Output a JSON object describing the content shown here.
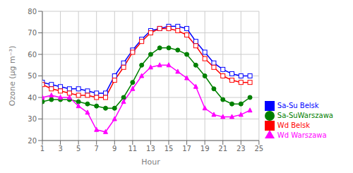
{
  "chart_data": {
    "type": "line",
    "x": [
      1,
      2,
      3,
      4,
      5,
      6,
      7,
      8,
      9,
      10,
      11,
      12,
      13,
      14,
      15,
      16,
      17,
      18,
      19,
      20,
      21,
      22,
      23,
      24
    ],
    "series": [
      {
        "name": "Sa-Su Belsk",
        "color": "#0000ff",
        "marker": "square",
        "values": [
          47,
          46,
          45,
          44,
          44,
          43,
          42,
          42,
          50,
          56,
          62,
          67,
          71,
          72,
          73,
          73,
          72,
          66,
          61,
          56,
          53,
          51,
          50,
          50
        ]
      },
      {
        "name": "Wd Belsk",
        "color": "#ff0000",
        "marker": "square",
        "values": [
          46,
          44,
          43,
          42,
          41,
          41,
          40,
          40,
          48,
          54,
          61,
          66,
          70,
          72,
          72,
          71,
          69,
          64,
          58,
          54,
          50,
          48,
          47,
          47
        ]
      },
      {
        "name": "Sa-SuWarszawa",
        "color": "#008000",
        "marker": "circle",
        "values": [
          38,
          39,
          39,
          39,
          38,
          37,
          36,
          35,
          35,
          40,
          47,
          55,
          60,
          63,
          63,
          62,
          60,
          55,
          50,
          44,
          39,
          37,
          37,
          40
        ]
      },
      {
        "name": "Wd Warszawa",
        "color": "#ff00ff",
        "marker": "triangle",
        "values": [
          40,
          41,
          40,
          40,
          36,
          33,
          25,
          24,
          30,
          38,
          44,
          50,
          54,
          55,
          55,
          52,
          49,
          45,
          35,
          32,
          31,
          31,
          32,
          34
        ]
      }
    ],
    "xlabel": "Hour",
    "ylabel": "Ozone (μg m⁻³)",
    "xlim": [
      1,
      25
    ],
    "ylim": [
      20,
      80
    ],
    "xticks": [
      1,
      3,
      5,
      7,
      9,
      11,
      13,
      15,
      17,
      19,
      21,
      23,
      25
    ],
    "yticks": [
      20,
      30,
      40,
      50,
      60,
      70,
      80
    ],
    "grid": true,
    "legend": "lower right"
  }
}
